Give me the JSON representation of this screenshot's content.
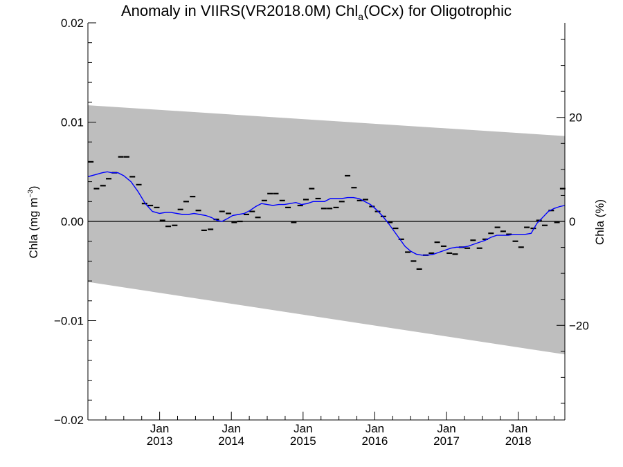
{
  "chart_data": {
    "type": "line",
    "title_main": "Anomaly in VIIRS(VR2018.0M) Chl",
    "title_sub": "a",
    "title_tail": "(OCx) for Oligotrophic",
    "ylabel_left_main": "Chla (mg m",
    "ylabel_left_sup": "−3",
    "ylabel_left_tail": ")",
    "ylabel_right": "Chla (%)",
    "xlim": [
      2012.0,
      2018.65
    ],
    "ylim": [
      -0.02,
      0.02
    ],
    "y2lim": [
      -38.2,
      38.2
    ],
    "left_ticks": [
      {
        "value": 0.02,
        "label": "0.02"
      },
      {
        "value": 0.01,
        "label": "0.01"
      },
      {
        "value": 0.0,
        "label": "0.00"
      },
      {
        "value": -0.01,
        "label": "−0.01"
      },
      {
        "value": -0.02,
        "label": "−0.02"
      }
    ],
    "right_ticks": [
      {
        "value": 20,
        "label": "20"
      },
      {
        "value": 0,
        "label": "0"
      },
      {
        "value": -20,
        "label": "−20"
      }
    ],
    "x_ticks": [
      {
        "value": 2013.0,
        "month": "Jan",
        "year": "2013"
      },
      {
        "value": 2014.0,
        "month": "Jan",
        "year": "2014"
      },
      {
        "value": 2015.0,
        "month": "Jan",
        "year": "2015"
      },
      {
        "value": 2016.0,
        "month": "Jan",
        "year": "2016"
      },
      {
        "value": 2017.0,
        "month": "Jan",
        "year": "2017"
      },
      {
        "value": 2018.0,
        "month": "Jan",
        "year": "2018"
      }
    ],
    "band": {
      "upper": [
        [
          2012.0,
          0.0117
        ],
        [
          2018.65,
          0.0086
        ]
      ],
      "lower": [
        [
          2012.0,
          -0.0061
        ],
        [
          2018.65,
          -0.0134
        ]
      ],
      "color": "#bebebe"
    },
    "monthly_values": [
      [
        2012.04,
        0.006
      ],
      [
        2012.12,
        0.0033
      ],
      [
        2012.21,
        0.0036
      ],
      [
        2012.29,
        0.0043
      ],
      [
        2012.37,
        0.0049
      ],
      [
        2012.46,
        0.0065
      ],
      [
        2012.54,
        0.0065
      ],
      [
        2012.62,
        0.0045
      ],
      [
        2012.71,
        0.0037
      ],
      [
        2012.79,
        0.0018
      ],
      [
        2012.87,
        0.0016
      ],
      [
        2012.96,
        0.0014
      ],
      [
        2013.04,
        0.0001
      ],
      [
        2013.12,
        -0.0005
      ],
      [
        2013.21,
        -0.0004
      ],
      [
        2013.29,
        0.0012
      ],
      [
        2013.37,
        0.002
      ],
      [
        2013.46,
        0.0025
      ],
      [
        2013.54,
        0.0011
      ],
      [
        2013.62,
        -0.0009
      ],
      [
        2013.71,
        -0.0008
      ],
      [
        2013.79,
        0.0002
      ],
      [
        2013.87,
        0.001
      ],
      [
        2013.96,
        0.0008
      ],
      [
        2014.04,
        -0.0001
      ],
      [
        2014.12,
        0.0
      ],
      [
        2014.21,
        0.0007
      ],
      [
        2014.29,
        0.001
      ],
      [
        2014.37,
        0.0004
      ],
      [
        2014.46,
        0.0021
      ],
      [
        2014.54,
        0.0028
      ],
      [
        2014.62,
        0.0028
      ],
      [
        2014.71,
        0.0021
      ],
      [
        2014.79,
        0.0014
      ],
      [
        2014.87,
        -0.0001
      ],
      [
        2014.96,
        0.0016
      ],
      [
        2015.04,
        0.0022
      ],
      [
        2015.12,
        0.0033
      ],
      [
        2015.21,
        0.0023
      ],
      [
        2015.29,
        0.0013
      ],
      [
        2015.37,
        0.0013
      ],
      [
        2015.46,
        0.0014
      ],
      [
        2015.54,
        0.002
      ],
      [
        2015.62,
        0.0046
      ],
      [
        2015.71,
        0.0034
      ],
      [
        2015.79,
        0.0021
      ],
      [
        2015.87,
        0.0022
      ],
      [
        2015.96,
        0.0015
      ],
      [
        2016.04,
        0.001
      ],
      [
        2016.12,
        0.0005
      ],
      [
        2016.21,
        -0.0001
      ],
      [
        2016.29,
        -0.0007
      ],
      [
        2016.37,
        -0.0018
      ],
      [
        2016.46,
        -0.0031
      ],
      [
        2016.54,
        -0.004
      ],
      [
        2016.62,
        -0.0048
      ],
      [
        2016.71,
        -0.0034
      ],
      [
        2016.79,
        -0.0032
      ],
      [
        2016.87,
        -0.0021
      ],
      [
        2016.96,
        -0.0025
      ],
      [
        2017.04,
        -0.0032
      ],
      [
        2017.12,
        -0.0033
      ],
      [
        2017.21,
        -0.0026
      ],
      [
        2017.29,
        -0.0027
      ],
      [
        2017.37,
        -0.0019
      ],
      [
        2017.46,
        -0.0027
      ],
      [
        2017.54,
        -0.0018
      ],
      [
        2017.62,
        -0.0012
      ],
      [
        2017.71,
        -0.0006
      ],
      [
        2017.79,
        -0.001
      ],
      [
        2017.87,
        -0.0013
      ],
      [
        2017.96,
        -0.002
      ],
      [
        2018.04,
        -0.0026
      ],
      [
        2018.12,
        -0.0006
      ],
      [
        2018.21,
        -0.0007
      ],
      [
        2018.29,
        0.0001
      ],
      [
        2018.37,
        -0.0004
      ],
      [
        2018.46,
        0.0011
      ],
      [
        2018.54,
        -0.0001
      ],
      [
        2018.62,
        0.0033
      ]
    ],
    "smoothed": [
      [
        2012.0,
        0.0045
      ],
      [
        2012.1,
        0.0047
      ],
      [
        2012.2,
        0.0049
      ],
      [
        2012.27,
        0.005
      ],
      [
        2012.33,
        0.0049
      ],
      [
        2012.42,
        0.0049
      ],
      [
        2012.5,
        0.0046
      ],
      [
        2012.6,
        0.004
      ],
      [
        2012.7,
        0.003
      ],
      [
        2012.8,
        0.0018
      ],
      [
        2012.9,
        0.001
      ],
      [
        2013.0,
        0.0008
      ],
      [
        2013.08,
        0.0009
      ],
      [
        2013.16,
        0.0009
      ],
      [
        2013.24,
        0.0008
      ],
      [
        2013.32,
        0.0007
      ],
      [
        2013.4,
        0.0007
      ],
      [
        2013.48,
        0.0008
      ],
      [
        2013.56,
        0.0007
      ],
      [
        2013.64,
        0.0006
      ],
      [
        2013.72,
        0.0004
      ],
      [
        2013.8,
        0.0001
      ],
      [
        2013.87,
        0.0
      ],
      [
        2013.95,
        0.0003
      ],
      [
        2014.02,
        0.0006
      ],
      [
        2014.1,
        0.0007
      ],
      [
        2014.18,
        0.0008
      ],
      [
        2014.26,
        0.0011
      ],
      [
        2014.34,
        0.0015
      ],
      [
        2014.42,
        0.0018
      ],
      [
        2014.5,
        0.0017
      ],
      [
        2014.58,
        0.0016
      ],
      [
        2014.66,
        0.0017
      ],
      [
        2014.74,
        0.0017
      ],
      [
        2014.82,
        0.0018
      ],
      [
        2014.9,
        0.0019
      ],
      [
        2014.98,
        0.0017
      ],
      [
        2015.06,
        0.0018
      ],
      [
        2015.14,
        0.002
      ],
      [
        2015.22,
        0.002
      ],
      [
        2015.3,
        0.002
      ],
      [
        2015.38,
        0.0023
      ],
      [
        2015.46,
        0.0023
      ],
      [
        2015.54,
        0.0023
      ],
      [
        2015.62,
        0.0024
      ],
      [
        2015.7,
        0.0024
      ],
      [
        2015.78,
        0.0023
      ],
      [
        2015.86,
        0.002
      ],
      [
        2015.94,
        0.0017
      ],
      [
        2016.02,
        0.0012
      ],
      [
        2016.1,
        0.0006
      ],
      [
        2016.18,
        -0.0001
      ],
      [
        2016.26,
        -0.0009
      ],
      [
        2016.34,
        -0.0017
      ],
      [
        2016.42,
        -0.0025
      ],
      [
        2016.5,
        -0.003
      ],
      [
        2016.58,
        -0.0033
      ],
      [
        2016.66,
        -0.0034
      ],
      [
        2016.74,
        -0.0034
      ],
      [
        2016.82,
        -0.0033
      ],
      [
        2016.9,
        -0.0031
      ],
      [
        2016.98,
        -0.0029
      ],
      [
        2017.06,
        -0.0027
      ],
      [
        2017.14,
        -0.0026
      ],
      [
        2017.22,
        -0.0026
      ],
      [
        2017.3,
        -0.0025
      ],
      [
        2017.38,
        -0.0023
      ],
      [
        2017.46,
        -0.0021
      ],
      [
        2017.54,
        -0.0019
      ],
      [
        2017.62,
        -0.0016
      ],
      [
        2017.7,
        -0.0014
      ],
      [
        2017.78,
        -0.0014
      ],
      [
        2017.86,
        -0.0014
      ],
      [
        2017.94,
        -0.0013
      ],
      [
        2018.02,
        -0.0013
      ],
      [
        2018.1,
        -0.0013
      ],
      [
        2018.18,
        -0.0012
      ],
      [
        2018.26,
        -0.0002
      ],
      [
        2018.34,
        0.0004
      ],
      [
        2018.42,
        0.001
      ],
      [
        2018.5,
        0.0013
      ],
      [
        2018.58,
        0.0015
      ],
      [
        2018.65,
        0.0016
      ]
    ],
    "colors": {
      "smoothed": "#0000ff",
      "monthly": "#000000",
      "zero_line": "#000000"
    },
    "grid": false
  }
}
